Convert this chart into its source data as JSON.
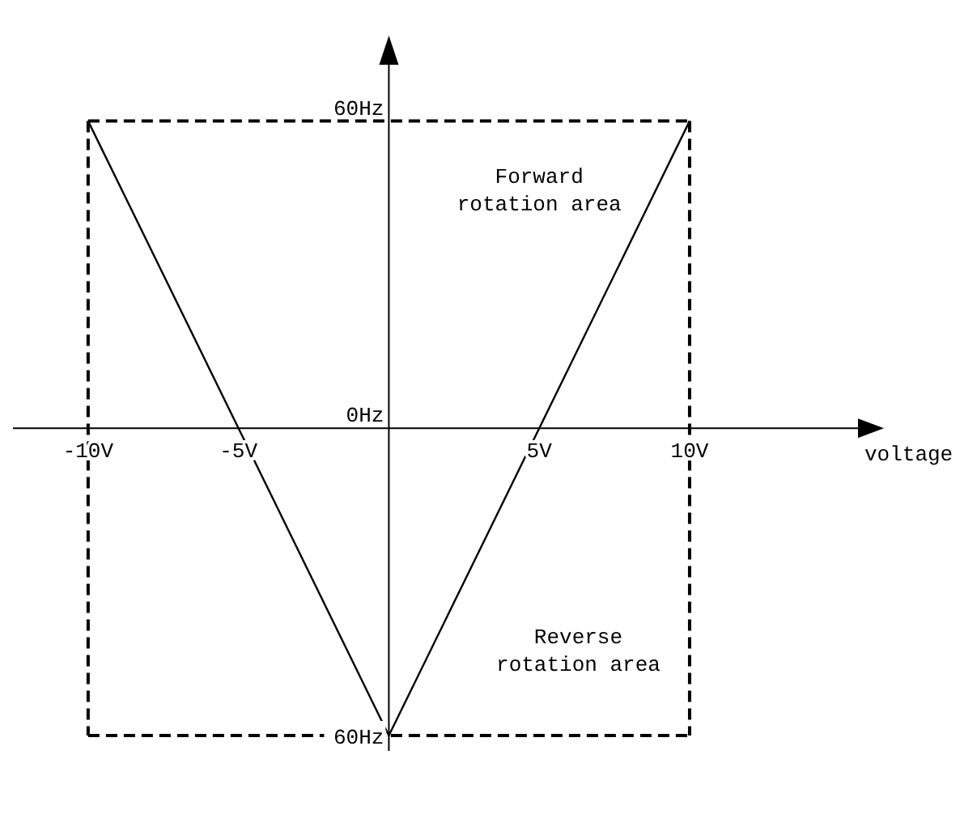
{
  "chart_data": {
    "type": "line",
    "xlabel": "voltage",
    "x": [
      -10,
      0,
      10
    ],
    "series": [
      {
        "color": "#000000",
        "values": [
          60,
          -60,
          60
        ]
      }
    ],
    "xlim": [
      -12.5,
      15.6
    ],
    "ylim": [
      -63,
      71
    ],
    "xticks": [
      {
        "value": -10,
        "label": "-10V"
      },
      {
        "value": -5,
        "label": "-5V"
      },
      {
        "value": 5,
        "label": "5V"
      },
      {
        "value": 10,
        "label": "10V"
      }
    ],
    "yticks": [
      {
        "value": 60,
        "label": "60Hz"
      },
      {
        "value": 0,
        "label": "0Hz"
      },
      {
        "value": -60,
        "label": "60Hz"
      }
    ],
    "ref_lines": [
      {
        "axis": "x",
        "value": -10,
        "line_style": "dashed"
      },
      {
        "axis": "x",
        "value": 10,
        "line_style": "dashed"
      },
      {
        "axis": "y",
        "value": 60,
        "line_style": "dashed"
      },
      {
        "axis": "y",
        "value": -60,
        "line_style": "dashed"
      }
    ],
    "annotations": [
      "Forward\nrotation area",
      "Reverse\nrotation area"
    ],
    "marker": "none",
    "line_style": "solid",
    "grid": false
  }
}
